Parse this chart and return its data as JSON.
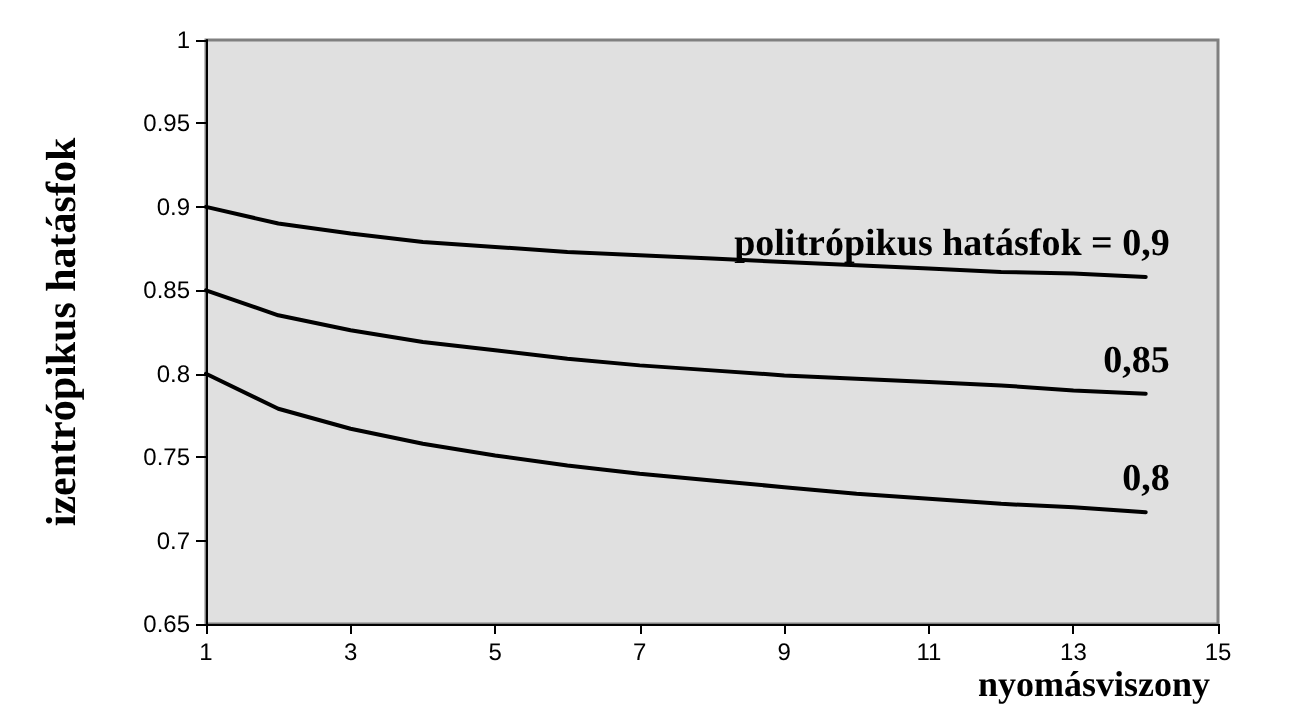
{
  "chart_data": {
    "type": "line",
    "xlabel": "nyomásviszony",
    "ylabel": "izentrópikus hatásfok",
    "xlim": [
      1,
      15
    ],
    "xticks": [
      1,
      3,
      5,
      7,
      9,
      11,
      13,
      15
    ],
    "ylim": [
      0.65,
      1
    ],
    "yticks": [
      0.65,
      0.7,
      0.75,
      0.8,
      0.85,
      0.9,
      0.95,
      1
    ],
    "x": [
      1,
      2,
      3,
      4,
      5,
      6,
      7,
      8,
      9,
      10,
      11,
      12,
      13,
      14
    ],
    "series": [
      {
        "name": "politrópikus hatásfok = 0,9",
        "color": "#000000",
        "values": [
          0.9,
          0.89,
          0.884,
          0.879,
          0.876,
          0.873,
          0.871,
          0.869,
          0.867,
          0.865,
          0.863,
          0.861,
          0.86,
          0.858
        ]
      },
      {
        "name": "0,85",
        "color": "#000000",
        "values": [
          0.85,
          0.835,
          0.826,
          0.819,
          0.814,
          0.809,
          0.805,
          0.802,
          0.799,
          0.797,
          0.795,
          0.793,
          0.79,
          0.788
        ]
      },
      {
        "name": "0,8",
        "color": "#000000",
        "values": [
          0.8,
          0.779,
          0.767,
          0.758,
          0.751,
          0.745,
          0.74,
          0.736,
          0.732,
          0.728,
          0.725,
          0.722,
          0.72,
          0.717
        ]
      }
    ],
    "grid": false,
    "legend": false,
    "marker": "none",
    "line_style": "solid"
  }
}
